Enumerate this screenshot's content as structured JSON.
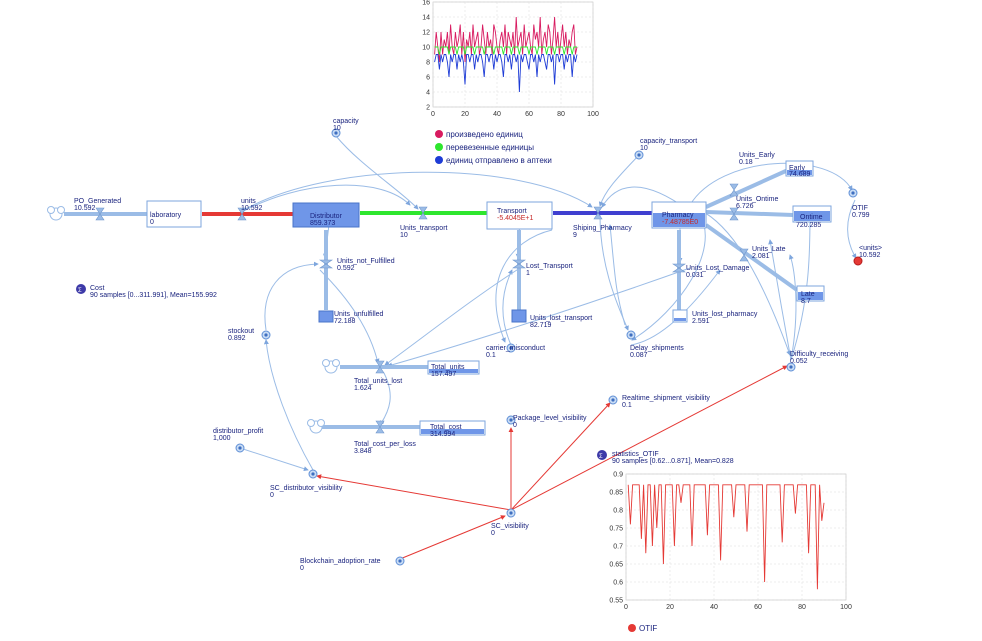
{
  "model": {
    "stocks": [
      {
        "id": "laboratory",
        "label": "laboratory",
        "value": "0",
        "style": "plain"
      },
      {
        "id": "distributor",
        "label": "Distributor",
        "value": "859.373",
        "style": "filled"
      },
      {
        "id": "transport",
        "label": "Transport",
        "value": "-5.4045E+1",
        "style": "plain-red"
      },
      {
        "id": "pharmacy",
        "label": "Pharmacy",
        "value": "-7.48785E0",
        "style": "partial"
      },
      {
        "id": "early",
        "label": "Early",
        "value": "74.689",
        "style": "partial"
      },
      {
        "id": "ontime",
        "label": "Ontime",
        "value": "720.285",
        "style": "partial"
      },
      {
        "id": "late",
        "label": "Late",
        "value": "8.7",
        "style": "partial"
      },
      {
        "id": "units_unfulfilled",
        "label": "Units_unfulfilled",
        "value": "72.188",
        "style": "mini"
      },
      {
        "id": "units_lost_transport",
        "label": "Units_lost_transport",
        "value": "82.719",
        "style": "mini"
      },
      {
        "id": "units_lost_pharmacy",
        "label": "Units_lost_pharmacy",
        "value": "2.591",
        "style": "mini-light"
      },
      {
        "id": "total_units",
        "label": "Total_units",
        "value": "157.497",
        "style": "partial"
      },
      {
        "id": "total_cost",
        "label": "Total_cost",
        "value": "314.994",
        "style": "partial"
      }
    ],
    "flows": [
      {
        "id": "po_generated",
        "label": "PO_Generated",
        "value": "10.592"
      },
      {
        "id": "units",
        "label": "units",
        "value": "10.592"
      },
      {
        "id": "units_transport",
        "label": "Units_transport",
        "value": "10"
      },
      {
        "id": "shiping_pharmacy",
        "label": "Shiping_Pharmacy",
        "value": "9"
      },
      {
        "id": "units_early",
        "label": "Units_Early",
        "value": "0.18"
      },
      {
        "id": "units_ontime",
        "label": "Units_Ontime",
        "value": "6.726"
      },
      {
        "id": "units_late",
        "label": "Units_Late",
        "value": "2.081"
      },
      {
        "id": "units_not_fulfilled",
        "label": "Units_not_Fulfilled",
        "value": "0.592"
      },
      {
        "id": "lost_transport",
        "label": "Lost_Transport",
        "value": "1"
      },
      {
        "id": "units_lost_damage",
        "label": "Units_Lost_Damage",
        "value": "0.031"
      },
      {
        "id": "total_units_lost",
        "label": "Total_units_lost",
        "value": "1.624"
      },
      {
        "id": "total_cost_per_loss",
        "label": "Total_cost_per_loss",
        "value": "3.848"
      }
    ],
    "variables": [
      {
        "id": "capacity",
        "label": "capacity",
        "value": "10"
      },
      {
        "id": "capacity_transport",
        "label": "capacity_transport",
        "value": "10"
      },
      {
        "id": "stockout",
        "label": "stockout",
        "value": "0.892"
      },
      {
        "id": "carrier_misconduct",
        "label": "carrier_misconduct",
        "value": "0.1"
      },
      {
        "id": "delay_shipments",
        "label": "Delay_shipments",
        "value": "0.087"
      },
      {
        "id": "difficulty_receiving",
        "label": "Difficulty_receiving",
        "value": "0.052"
      },
      {
        "id": "realtime_visibility",
        "label": "Realtime_shipment_visibility",
        "value": "0.1"
      },
      {
        "id": "package_visibility",
        "label": "Package_level_visibility",
        "value": "0"
      },
      {
        "id": "distributor_profit",
        "label": "distributor_profit",
        "value": "1,000"
      },
      {
        "id": "sc_distributor_visibility",
        "label": "SC_distributor_visibility",
        "value": "0"
      },
      {
        "id": "sc_visibility",
        "label": "SC_visibility",
        "value": "0"
      },
      {
        "id": "blockchain_rate",
        "label": "Blockchain_adoption_rate",
        "value": "0"
      },
      {
        "id": "otif",
        "label": "OTIF",
        "value": "0.799"
      },
      {
        "id": "units_shadow",
        "label": "<units>",
        "value": "10.592"
      }
    ],
    "stats": [
      {
        "id": "cost",
        "label": "Cost",
        "summary": "90 samples [0...311.991], Mean=155.992"
      },
      {
        "id": "statistics_otif",
        "label": "statistics_OTIF",
        "summary": "90 samples [0.62...0.871], Mean=0.828"
      }
    ]
  },
  "chart_data": [
    {
      "type": "line",
      "xlim": [
        0,
        100
      ],
      "ylim": [
        2,
        16
      ],
      "xticks": [
        "0",
        "20",
        "40",
        "60",
        "80",
        "100"
      ],
      "yticks": [
        "2",
        "4",
        "6",
        "8",
        "10",
        "12",
        "14",
        "16"
      ],
      "grid": true,
      "legend": "below",
      "x_start": 1,
      "series": [
        {
          "name": "произведено единиц",
          "color": "#d81b60",
          "values": [
            9,
            12,
            10,
            8,
            12,
            9,
            11,
            10,
            12,
            9,
            13,
            10,
            9,
            12,
            10,
            11,
            13,
            9,
            12,
            8,
            11,
            10,
            12,
            9,
            13,
            10,
            11,
            12,
            9,
            10,
            13,
            11,
            9,
            12,
            10,
            11,
            9,
            13,
            12,
            10,
            9,
            11,
            12,
            10,
            13,
            9,
            12,
            11,
            10,
            12,
            9,
            14,
            10,
            11,
            12,
            9,
            13,
            10,
            11,
            12,
            10,
            9,
            13,
            11,
            12,
            10,
            14,
            9,
            11,
            12,
            10,
            13,
            12,
            9,
            11,
            14,
            10,
            12,
            9,
            11,
            13,
            10,
            12,
            9,
            11,
            10,
            12,
            13,
            9,
            10
          ]
        },
        {
          "name": "перевезенные единицы",
          "color": "#2ee62e",
          "values": [
            10,
            10,
            10,
            9,
            10,
            10,
            10,
            10,
            10,
            9,
            10,
            10,
            10,
            10,
            9,
            10,
            10,
            10,
            10,
            9,
            10,
            10,
            10,
            10,
            10,
            9,
            10,
            10,
            10,
            10,
            10,
            9,
            10,
            10,
            10,
            10,
            10,
            9,
            10,
            10,
            10,
            10,
            10,
            9,
            10,
            10,
            10,
            10,
            9,
            10,
            10,
            10,
            10,
            9,
            10,
            10,
            10,
            10,
            10,
            9,
            10,
            10,
            10,
            10,
            9,
            10,
            10,
            10,
            10,
            10,
            9,
            10,
            10,
            10,
            10,
            9,
            10,
            10,
            10,
            10,
            10,
            9,
            10,
            10,
            10,
            10,
            9,
            10,
            10,
            10
          ]
        },
        {
          "name": "единиц отправлено в аптеки",
          "color": "#1e3cd6",
          "values": [
            8,
            9,
            9,
            7,
            9,
            8,
            9,
            9,
            8,
            6,
            9,
            8,
            9,
            9,
            7,
            9,
            8,
            9,
            8,
            5,
            9,
            9,
            8,
            9,
            9,
            7,
            9,
            8,
            9,
            9,
            8,
            6,
            9,
            9,
            8,
            9,
            9,
            7,
            9,
            8,
            9,
            9,
            8,
            6,
            9,
            9,
            8,
            9,
            7,
            9,
            9,
            8,
            9,
            4,
            9,
            8,
            9,
            9,
            8,
            7,
            9,
            9,
            8,
            9,
            6,
            9,
            8,
            9,
            9,
            8,
            7,
            9,
            9,
            8,
            9,
            5,
            9,
            9,
            8,
            9,
            9,
            7,
            9,
            8,
            9,
            9,
            6,
            9,
            8,
            9
          ]
        }
      ]
    },
    {
      "type": "line",
      "xlim": [
        0,
        100
      ],
      "ylim": [
        0.55,
        0.9
      ],
      "xticks": [
        "0",
        "20",
        "40",
        "60",
        "80",
        "100"
      ],
      "yticks": [
        "0.55",
        "0.6",
        "0.65",
        "0.7",
        "0.75",
        "0.8",
        "0.85",
        "0.9"
      ],
      "grid": true,
      "legend": "below",
      "x_start": 1,
      "series": [
        {
          "name": "OTIF",
          "color": "#e53935",
          "values": [
            0.87,
            0.76,
            0.87,
            0.87,
            0.87,
            0.87,
            0.72,
            0.87,
            0.68,
            0.87,
            0.87,
            0.7,
            0.87,
            0.75,
            0.87,
            0.87,
            0.65,
            0.87,
            0.87,
            0.87,
            0.87,
            0.7,
            0.87,
            0.87,
            0.82,
            0.87,
            0.87,
            0.87,
            0.87,
            0.7,
            0.87,
            0.87,
            0.87,
            0.87,
            0.87,
            0.87,
            0.73,
            0.87,
            0.87,
            0.87,
            0.87,
            0.87,
            0.66,
            0.87,
            0.87,
            0.87,
            0.87,
            0.87,
            0.78,
            0.87,
            0.87,
            0.87,
            0.87,
            0.87,
            0.74,
            0.87,
            0.87,
            0.87,
            0.87,
            0.87,
            0.87,
            0.87,
            0.6,
            0.87,
            0.87,
            0.87,
            0.87,
            0.87,
            0.87,
            0.87,
            0.71,
            0.87,
            0.87,
            0.87,
            0.87,
            0.87,
            0.79,
            0.87,
            0.87,
            0.87,
            0.87,
            0.87,
            0.68,
            0.87,
            0.87,
            0.87,
            0.58,
            0.87,
            0.77,
            0.82
          ]
        }
      ]
    }
  ]
}
